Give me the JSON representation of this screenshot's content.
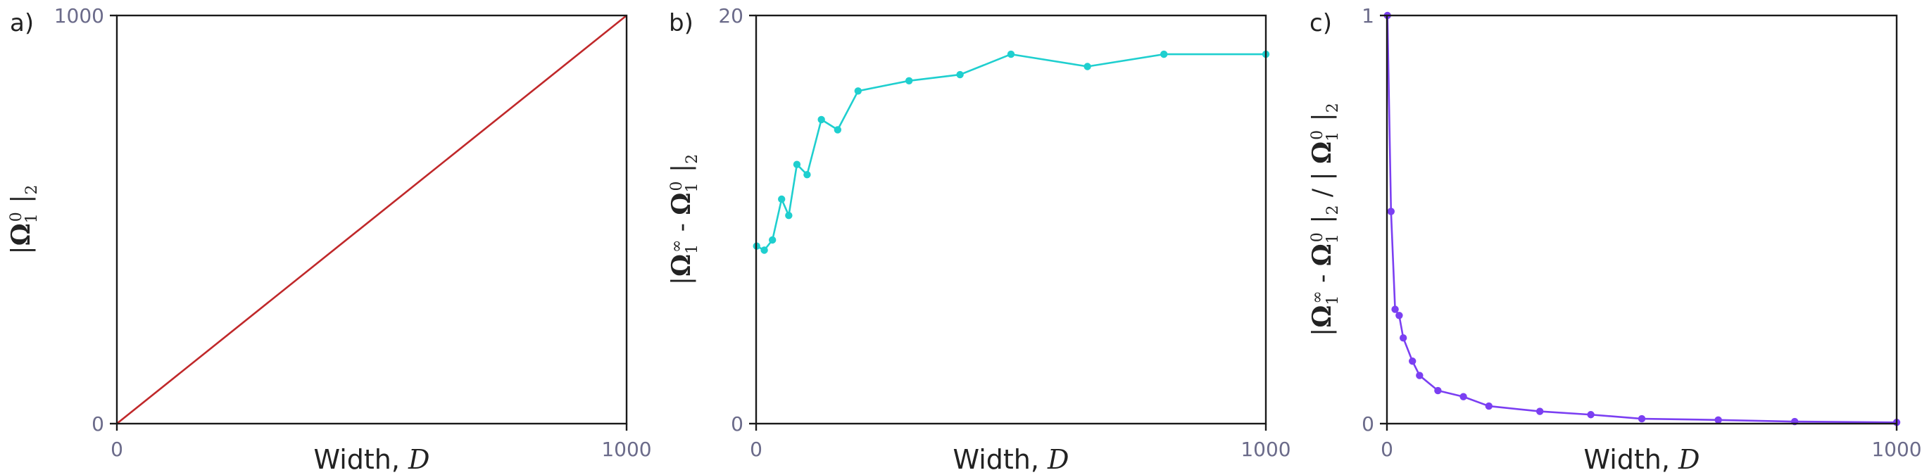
{
  "chart_data": [
    {
      "panel": "a)",
      "type": "line",
      "x": [
        0,
        1000
      ],
      "values": [
        0,
        1000
      ],
      "xlim": [
        0,
        1000
      ],
      "ylim": [
        0,
        1000
      ],
      "xticks": [
        "0",
        "1000"
      ],
      "yticks": [
        "0",
        "1000"
      ],
      "xlabel": "Width, D",
      "ylabel": "|Ω₁⁰|₂",
      "color": "#c0282a",
      "markers": false
    },
    {
      "panel": "b)",
      "type": "line",
      "x": [
        1,
        16,
        32,
        50,
        64,
        80,
        100,
        128,
        160,
        200,
        300,
        400,
        500,
        650,
        800,
        1000
      ],
      "values": [
        8.7,
        8.5,
        9.0,
        11.0,
        10.2,
        12.7,
        12.2,
        14.9,
        14.4,
        16.3,
        16.8,
        17.1,
        18.1,
        17.5,
        18.1,
        18.1
      ],
      "xlim": [
        0,
        1000
      ],
      "ylim": [
        0,
        20
      ],
      "xticks": [
        "0",
        "1000"
      ],
      "yticks": [
        "0",
        "20"
      ],
      "xlabel": "Width, D",
      "ylabel": "|Ω₁^∞ - Ω₁⁰|₂",
      "color": "#1fcfcf",
      "markers": true
    },
    {
      "panel": "c)",
      "type": "line",
      "x": [
        1,
        8,
        16,
        24,
        32,
        50,
        64,
        100,
        150,
        200,
        300,
        400,
        500,
        650,
        800,
        1000
      ],
      "values": [
        1.0,
        0.52,
        0.28,
        0.265,
        0.21,
        0.153,
        0.118,
        0.081,
        0.066,
        0.043,
        0.03,
        0.022,
        0.012,
        0.009,
        0.005,
        0.003
      ],
      "xlim": [
        0,
        1000
      ],
      "ylim": [
        0,
        1
      ],
      "xticks": [
        "0",
        "1000"
      ],
      "yticks": [
        "0",
        "1"
      ],
      "xlabel": "Width, D",
      "ylabel": "|Ω₁^∞ - Ω₁⁰|₂ / |Ω₁⁰|₂",
      "color": "#7b3ff2",
      "markers": true
    }
  ]
}
